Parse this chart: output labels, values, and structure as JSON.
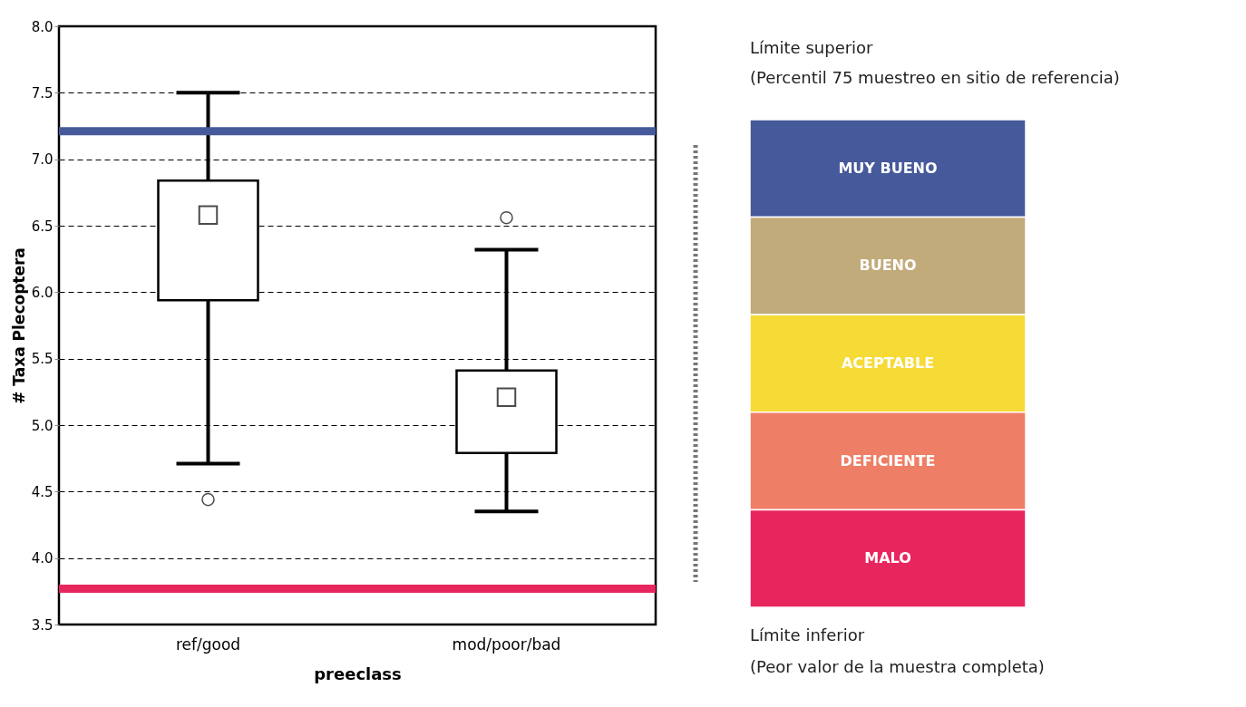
{
  "chart_data": [
    {
      "type": "box",
      "ylabel": "# Taxa Plecoptera",
      "xlabel": "preeclass",
      "categories": [
        "ref/good",
        "mod/poor/bad"
      ],
      "boxes": [
        {
          "low": 4.71,
          "q1": 5.94,
          "median": 6.58,
          "q3": 6.84,
          "high": 7.5,
          "outliers": [
            4.44
          ]
        },
        {
          "low": 4.35,
          "q1": 4.79,
          "median": 5.21,
          "q3": 5.41,
          "high": 6.32,
          "outliers": [
            6.56
          ]
        }
      ],
      "ylim": [
        3.5,
        8.0
      ],
      "yticks": [
        3.5,
        {
          "value": 4,
          "label": "4.0"
        },
        4.5,
        {
          "value": 5,
          "label": "5.0"
        },
        5.5,
        {
          "value": 6,
          "label": "6.0"
        },
        6.5,
        {
          "value": 7,
          "label": "7.0"
        },
        7.5,
        {
          "value": 8,
          "label": "8.0"
        }
      ],
      "grid": "y",
      "ref_lines": [
        {
          "axis": "y",
          "value": 7.21,
          "color": "#46599a"
        },
        {
          "axis": "y",
          "value": 3.77,
          "color": "#e8265e"
        }
      ]
    },
    {
      "type": "other",
      "categories": [
        "MUY BUENO",
        "BUENO",
        "ACEPTABLE",
        "DEFICIENTE",
        "MALO"
      ],
      "colors": [
        "#46599a",
        "#c2ab7b",
        "#f6da35",
        "#ee7f66",
        "#e8265e"
      ],
      "annotations": [
        "Límite superior",
        "(Percentil 75 muestreo en sitio de referencia)",
        "Límite inferior",
        "(Peor valor de la muestra completa)"
      ]
    }
  ]
}
